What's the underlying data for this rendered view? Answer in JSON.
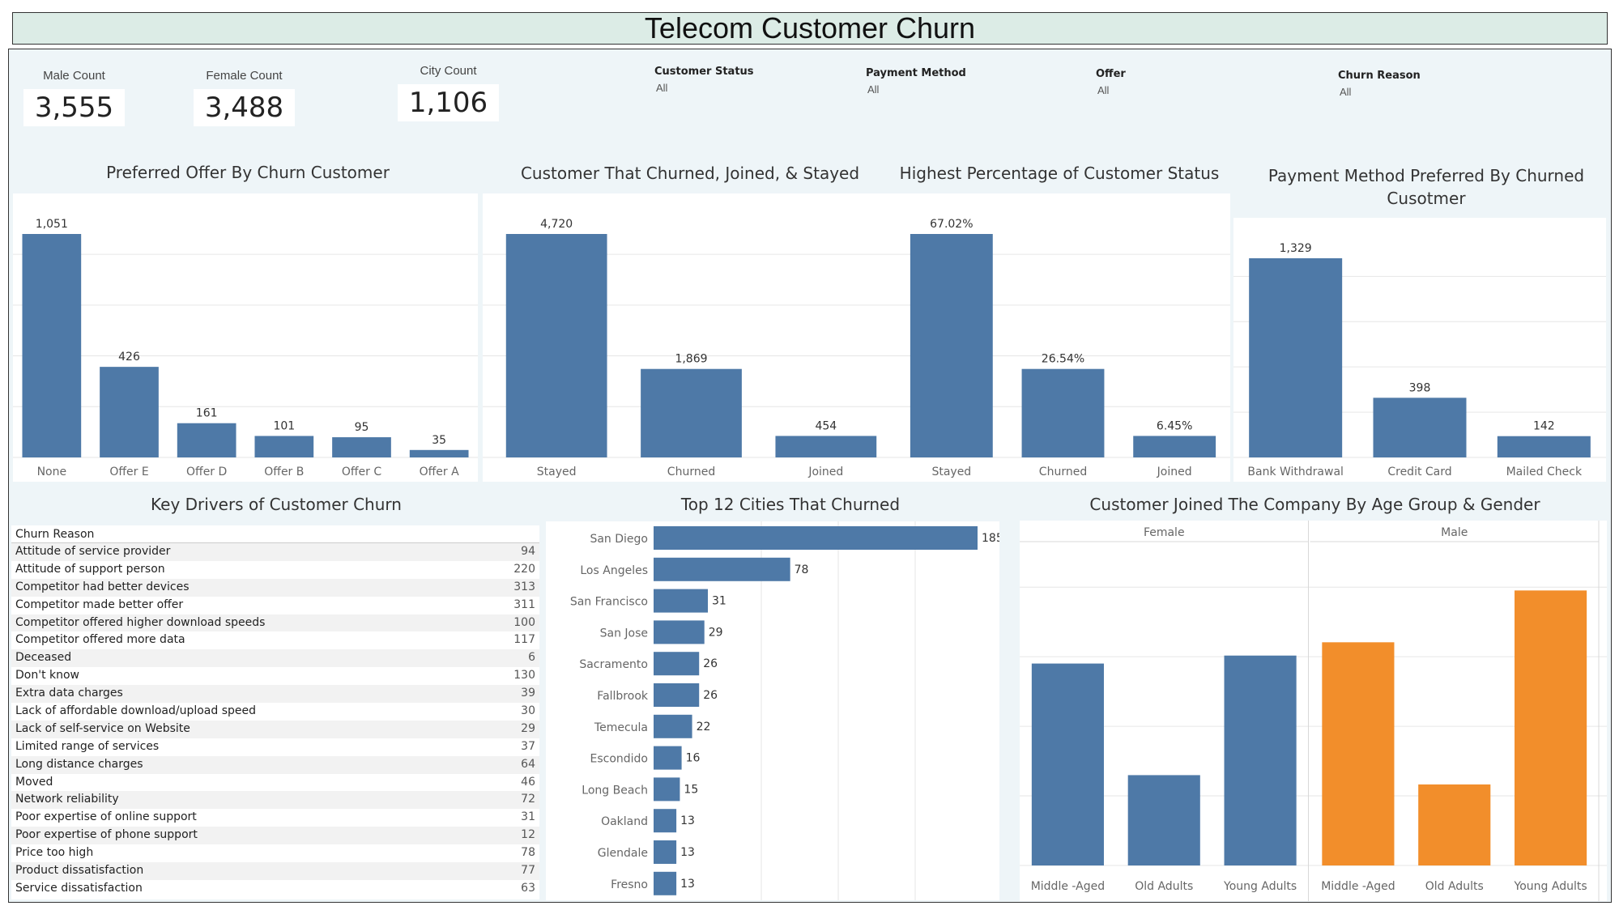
{
  "title": "Telecom Customer Churn",
  "kpis": {
    "male": {
      "label": "Male Count",
      "value": "3,555"
    },
    "female": {
      "label": "Female Count",
      "value": "3,488"
    },
    "city": {
      "label": "City Count",
      "value": "1,106"
    }
  },
  "filters": [
    {
      "label": "Customer Status",
      "value": "All"
    },
    {
      "label": "Payment Method",
      "value": "All"
    },
    {
      "label": "Offer",
      "value": "All"
    },
    {
      "label": "Churn Reason",
      "value": "All"
    }
  ],
  "colors": {
    "bar": "#4e79a7",
    "orange": "#f28e2b",
    "grid": "#e6e6e6"
  },
  "chart_data": [
    {
      "type": "bar",
      "title": "Preferred Offer By Churn Customer",
      "categories": [
        "None",
        "Offer E",
        "Offer D",
        "Offer B",
        "Offer C",
        "Offer A"
      ],
      "values": [
        1051,
        426,
        161,
        101,
        95,
        35
      ],
      "labels": [
        "1,051",
        "426",
        "161",
        "101",
        "95",
        "35"
      ]
    },
    {
      "type": "bar",
      "title": "Customer That Churned, Joined, & Stayed",
      "categories": [
        "Stayed",
        "Churned",
        "Joined"
      ],
      "values": [
        4720,
        1869,
        454
      ],
      "labels": [
        "4,720",
        "1,869",
        "454"
      ]
    },
    {
      "type": "bar",
      "title": "Highest Percentage of Customer Status",
      "categories": [
        "Stayed",
        "Churned",
        "Joined"
      ],
      "values": [
        67.02,
        26.54,
        6.45
      ],
      "labels": [
        "67.02%",
        "26.54%",
        "6.45%"
      ]
    },
    {
      "type": "bar",
      "title": "Payment Method Preferred By Churned Cusotmer",
      "categories": [
        "Bank Withdrawal",
        "Credit Card",
        "Mailed Check"
      ],
      "values": [
        1329,
        398,
        142
      ],
      "labels": [
        "1,329",
        "398",
        "142"
      ]
    },
    {
      "type": "table",
      "title": "Key Drivers of Customer Churn",
      "header": "Churn Reason",
      "rows": [
        {
          "reason": "Attitude of service provider",
          "value": "94"
        },
        {
          "reason": "Attitude of support person",
          "value": "220"
        },
        {
          "reason": "Competitor had better devices",
          "value": "313"
        },
        {
          "reason": "Competitor made better offer",
          "value": "311"
        },
        {
          "reason": "Competitor offered higher download speeds",
          "value": "100"
        },
        {
          "reason": "Competitor offered more data",
          "value": "117"
        },
        {
          "reason": "Deceased",
          "value": "6"
        },
        {
          "reason": "Don't know",
          "value": "130"
        },
        {
          "reason": "Extra data charges",
          "value": "39"
        },
        {
          "reason": "Lack of affordable download/upload speed",
          "value": "30"
        },
        {
          "reason": "Lack of self-service on Website",
          "value": "29"
        },
        {
          "reason": "Limited range of services",
          "value": "37"
        },
        {
          "reason": "Long distance charges",
          "value": "64"
        },
        {
          "reason": "Moved",
          "value": "46"
        },
        {
          "reason": "Network reliability",
          "value": "72"
        },
        {
          "reason": "Poor expertise of online support",
          "value": "31"
        },
        {
          "reason": "Poor expertise of phone support",
          "value": "12"
        },
        {
          "reason": "Price too high",
          "value": "78"
        },
        {
          "reason": "Product dissatisfaction",
          "value": "77"
        },
        {
          "reason": "Service dissatisfaction",
          "value": "63"
        }
      ]
    },
    {
      "type": "bar",
      "orientation": "horizontal",
      "title": "Top 12 Cities That Churned",
      "categories": [
        "San Diego",
        "Los Angeles",
        "San Francisco",
        "San Jose",
        "Sacramento",
        "Fallbrook",
        "Temecula",
        "Escondido",
        "Long Beach",
        "Oakland",
        "Glendale",
        "Fresno"
      ],
      "values": [
        185,
        78,
        31,
        29,
        26,
        26,
        22,
        16,
        15,
        13,
        13,
        13
      ]
    },
    {
      "type": "bar",
      "title": "Customer Joined The Company By Age Group & Gender",
      "panels": [
        "Female",
        "Male"
      ],
      "categories": [
        "Middle -Aged",
        "Old Adults",
        "Young Adults"
      ],
      "series": [
        {
          "name": "Female",
          "values": [
            152,
            68,
            158
          ]
        },
        {
          "name": "Male",
          "values": [
            168,
            61,
            207
          ]
        }
      ]
    }
  ]
}
